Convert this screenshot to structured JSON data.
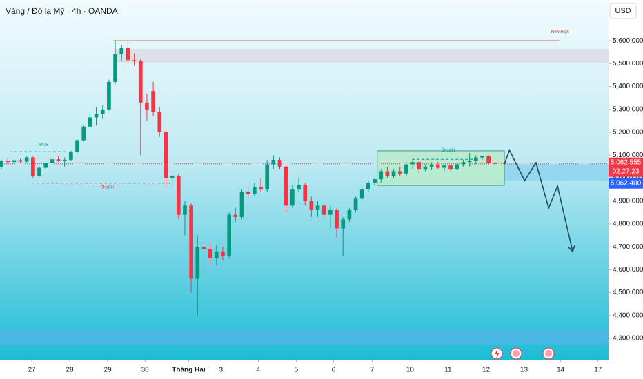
{
  "chart_data": {
    "type": "candlestick",
    "title": "Vàng / Đô la Mỹ · 4h · OANDA",
    "currency": "USD",
    "up_color": "#089981",
    "down_color": "#f23645",
    "candles": {
      "open": [
        5050,
        5075,
        5070,
        5078,
        5072,
        5090,
        5010,
        5045,
        5065,
        5082,
        5075,
        5080,
        5115,
        5165,
        5225,
        5265,
        5280,
        5300,
        5420,
        5540,
        5570,
        5515,
        5510,
        5330,
        5380,
        5290,
        5200,
        5000,
        5010,
        4840,
        4880,
        4560,
        4700,
        4690,
        4650,
        4680,
        4660,
        4840,
        4830,
        4940,
        4930,
        4960,
        4950,
        5060,
        5080,
        5050,
        4880,
        4950,
        4970,
        4900,
        4860,
        4880,
        4840,
        4860,
        4780,
        4820,
        4860,
        4910,
        4950,
        4980,
        4995,
        5030,
        5010,
        5030,
        5020,
        5060,
        5070,
        5040,
        5050,
        5060,
        5045,
        5055,
        5040,
        5060,
        5070,
        5075,
        5090,
        5095,
        5065
      ],
      "high": [
        5080,
        5085,
        5080,
        5085,
        5095,
        5095,
        5050,
        5070,
        5090,
        5095,
        5090,
        5120,
        5170,
        5230,
        5290,
        5310,
        5320,
        5430,
        5600,
        5580,
        5600,
        5545,
        5520,
        5370,
        5420,
        5310,
        5210,
        5030,
        5020,
        4900,
        4890,
        4750,
        4720,
        4720,
        4710,
        4700,
        4850,
        4870,
        4950,
        4960,
        4980,
        5000,
        5080,
        5100,
        5090,
        5060,
        4970,
        5000,
        4980,
        4920,
        4900,
        4890,
        4880,
        4870,
        4830,
        4870,
        4920,
        4960,
        4990,
        5000,
        5040,
        5050,
        5040,
        5050,
        5070,
        5080,
        5075,
        5060,
        5070,
        5070,
        5060,
        5060,
        5065,
        5080,
        5110,
        5100,
        5100,
        5100,
        5070
      ],
      "low": [
        5040,
        5060,
        5062,
        5065,
        5068,
        5000,
        5005,
        5040,
        5060,
        5070,
        5050,
        5075,
        5110,
        5160,
        5220,
        5230,
        5260,
        5295,
        5410,
        5510,
        5500,
        5490,
        5100,
        5250,
        5270,
        5180,
        4960,
        4950,
        4820,
        4750,
        4500,
        4400,
        4580,
        4620,
        4620,
        4640,
        4650,
        4810,
        4820,
        4910,
        4920,
        4940,
        4940,
        5040,
        5040,
        4850,
        4870,
        4940,
        4880,
        4830,
        4830,
        4820,
        4780,
        4740,
        4660,
        4810,
        4850,
        4900,
        4940,
        4970,
        4980,
        5000,
        5000,
        5010,
        5010,
        5040,
        5020,
        5030,
        5035,
        5040,
        5030,
        5030,
        5035,
        5050,
        5050,
        5060,
        5080,
        5060,
        5055
      ],
      "close": [
        5075,
        5070,
        5078,
        5072,
        5090,
        5010,
        5045,
        5065,
        5082,
        5075,
        5080,
        5115,
        5165,
        5225,
        5265,
        5280,
        5300,
        5420,
        5540,
        5570,
        5515,
        5510,
        5330,
        5300,
        5290,
        5200,
        5000,
        5010,
        4840,
        4880,
        4560,
        4700,
        4690,
        4650,
        4680,
        4660,
        4840,
        4830,
        4940,
        4930,
        4960,
        4950,
        5060,
        5080,
        5050,
        4880,
        4950,
        4970,
        4900,
        4860,
        4880,
        4840,
        4860,
        4780,
        4820,
        4860,
        4910,
        4950,
        4980,
        4995,
        5030,
        5010,
        5030,
        5020,
        5060,
        5070,
        5040,
        5050,
        5060,
        5045,
        5055,
        5040,
        5060,
        5070,
        5075,
        5090,
        5095,
        5065,
        5062.555
      ]
    },
    "xlim": [
      -0.22,
      95.96
    ],
    "xticks": [
      {
        "value": 4.8,
        "label": "27"
      },
      {
        "value": 10.8,
        "label": "28"
      },
      {
        "value": 16.8,
        "label": "29"
      },
      {
        "value": 22.7,
        "label": "30"
      },
      {
        "value": 29.6,
        "label": "Tháng Hai"
      },
      {
        "value": 34.7,
        "label": "3"
      },
      {
        "value": 40.6,
        "label": "4"
      },
      {
        "value": 46.6,
        "label": "5"
      },
      {
        "value": 52.5,
        "label": "6"
      },
      {
        "value": 58.6,
        "label": "7"
      },
      {
        "value": 64.6,
        "label": "10"
      },
      {
        "value": 70.6,
        "label": "11"
      },
      {
        "value": 76.6,
        "label": "12"
      },
      {
        "value": 82.6,
        "label": "13"
      },
      {
        "value": 88.4,
        "label": "14"
      },
      {
        "value": 94.3,
        "label": "17"
      }
    ],
    "ylim": [
      4264,
      5778
    ],
    "yticks": [
      {
        "value": 4300,
        "label": "4,300.000"
      },
      {
        "value": 4400,
        "label": "4,400.000"
      },
      {
        "value": 4500,
        "label": "4,500.000"
      },
      {
        "value": 4600,
        "label": "4,600.000"
      },
      {
        "value": 4700,
        "label": "4,700.000"
      },
      {
        "value": 4800,
        "label": "4,800.000"
      },
      {
        "value": 4900,
        "label": "4,900.000"
      },
      {
        "value": 5000,
        "label": "5,000.000"
      },
      {
        "value": 5100,
        "label": "5,100.000"
      },
      {
        "value": 5200,
        "label": "5,200.000"
      },
      {
        "value": 5300,
        "label": "5,300.000"
      },
      {
        "value": 5400,
        "label": "5,400.000"
      },
      {
        "value": 5500,
        "label": "5,500.000"
      },
      {
        "value": 5600,
        "label": "5,600.000"
      }
    ],
    "last_price": {
      "value": 5062.555,
      "label": "5,062.555"
    },
    "countdown": "02:27:23",
    "bid": {
      "value": 5062.4,
      "label": "5,062.400"
    },
    "zones": [
      {
        "x": [
          17.8,
          95.96
        ],
        "y": [
          5504,
          5564
        ],
        "color": "#d9dde3"
      },
      {
        "x": [
          79.5,
          95.96
        ],
        "y": [
          4989,
          5061
        ],
        "color": "#8fd3f0"
      },
      {
        "x": [
          -0.22,
          95.96
        ],
        "y": [
          4273,
          4339
        ],
        "color": "#4fb7e6"
      },
      {
        "x": [
          59.4,
          79.5
        ],
        "y": [
          4968,
          5119
        ],
        "color": "#b9ecc9"
      }
    ],
    "lines": [
      {
        "x": [
          17.7,
          88.3
        ],
        "y": 5600,
        "color": "#c0392b"
      },
      {
        "x": [
          1.3,
          10.1
        ],
        "y": 5115,
        "color": "#089981"
      },
      {
        "x": [
          4.8,
          26.8
        ],
        "y": 4978,
        "color": "#f23645"
      },
      {
        "x": [
          64.9,
          74.5
        ],
        "y": 5082,
        "color": "#089981"
      }
    ],
    "annotations": [
      {
        "text": "BOS",
        "x": 6.7,
        "y": 5146,
        "color": "#089981"
      },
      {
        "text": "ChoCH",
        "x": 16.7,
        "y": 4959,
        "color": "#f23645"
      },
      {
        "text": "ChoCH",
        "x": 70.6,
        "y": 5121,
        "color": "#089981"
      },
      {
        "text": "New High",
        "x": 88.3,
        "y": 5639,
        "color": "#c0392b"
      }
    ],
    "projection": {
      "x": [
        79.5,
        80.3,
        82.7,
        84.5,
        86.5,
        87.9,
        90.3
      ],
      "y": [
        5061,
        5122,
        4989,
        5067,
        4869,
        4965,
        4679
      ]
    }
  }
}
